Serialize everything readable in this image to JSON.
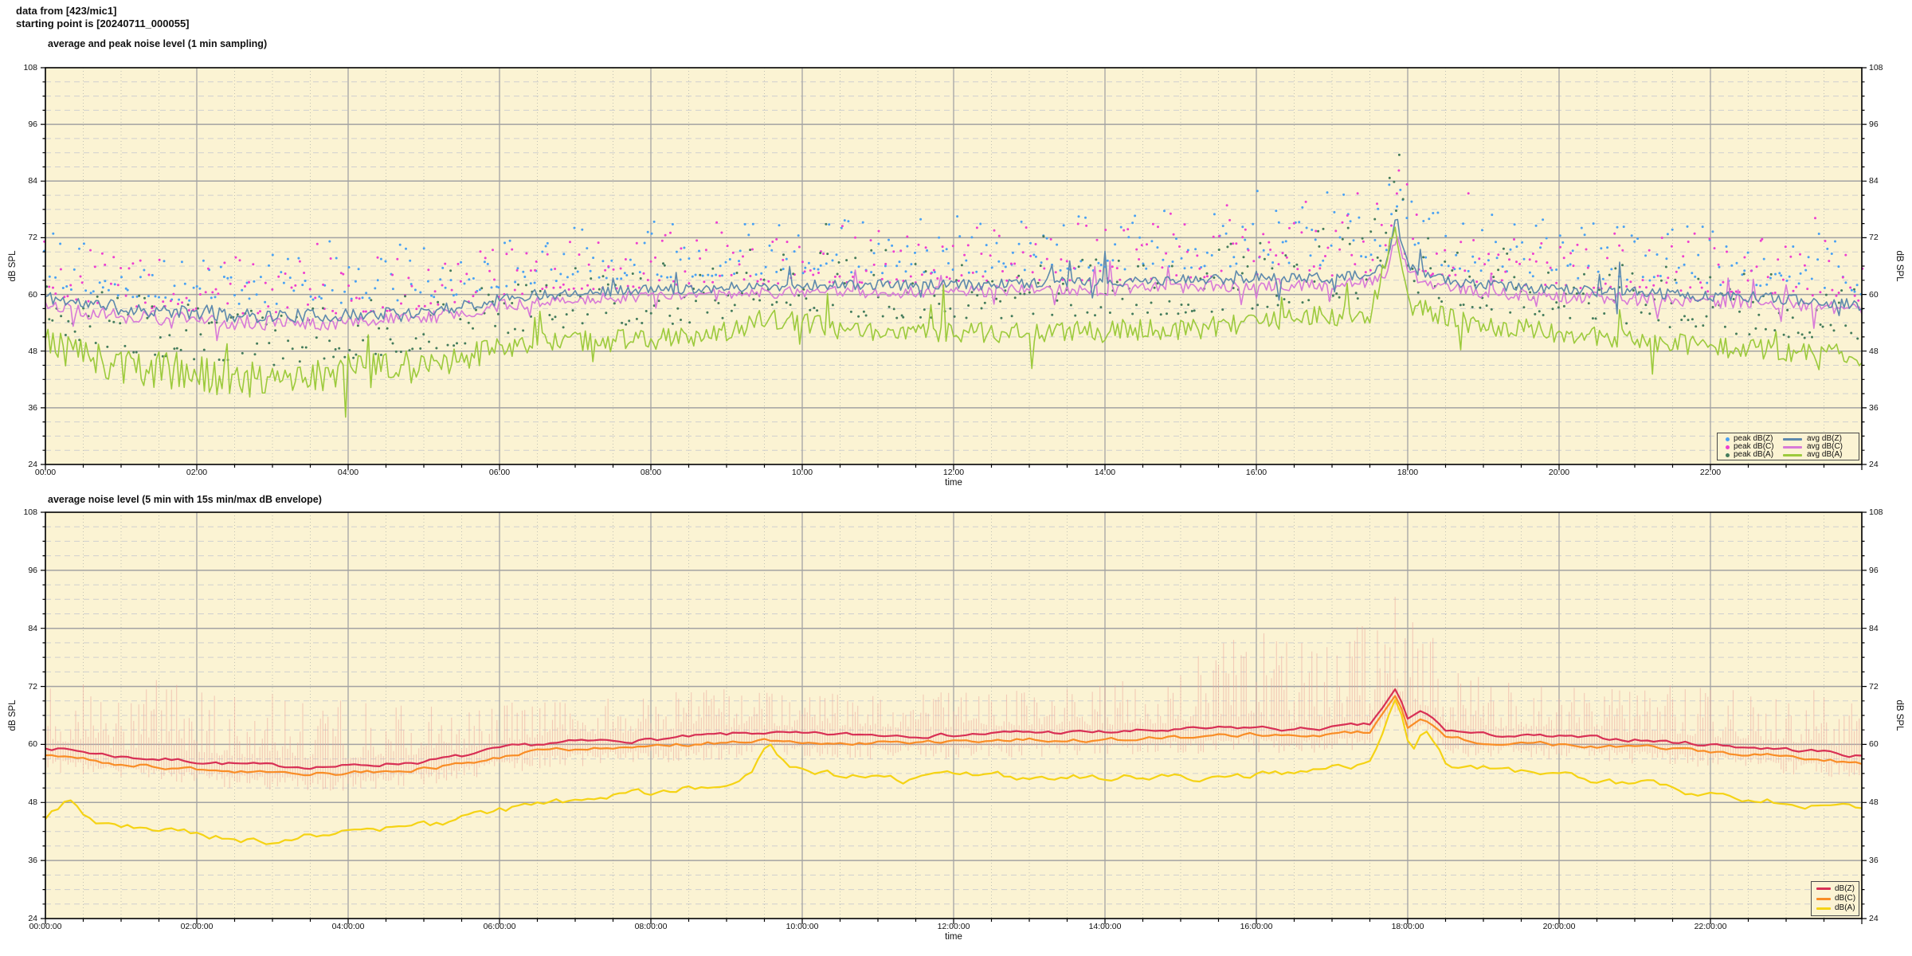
{
  "header": {
    "line1": "data from [423/mic1]",
    "line2": "starting point is [20240711_000055]"
  },
  "colors": {
    "page_bg": "#ffffff",
    "plot_bg": "#fbf3d3",
    "grid_major": "#a3a3a3",
    "grid_minor_dash": "#cfcfcf",
    "grid_minor_dot": "#c2c2b4",
    "axis": "#000000",
    "envelope": "#eda79c"
  },
  "chart_data": [
    {
      "type": "line",
      "title": "average and peak noise level (1 min sampling)",
      "xlabel": "time",
      "ylabel": "dB SPL",
      "y2label": "dB SPL",
      "ylim": [
        24,
        108
      ],
      "ytick_step": 12,
      "ytick_minor_step": 3,
      "ytick_labels": [
        "24",
        "36",
        "48",
        "60",
        "72",
        "84",
        "96",
        "108"
      ],
      "xlim_hours": [
        0,
        24
      ],
      "xtick_step_hours": 2,
      "xtick_minor_hours": 0.5,
      "xtick_labels": [
        "00:00",
        "02:00",
        "04:00",
        "06:00",
        "08:00",
        "10:00",
        "12:00",
        "14:00",
        "16:00",
        "18:00",
        "20:00",
        "22:00"
      ],
      "grid": true,
      "legend": {
        "position": "bottom-right",
        "scatter": [
          {
            "label": "peak dB(Z)",
            "color": "#49a1f3"
          },
          {
            "label": "peak dB(C)",
            "color": "#ee3fd0"
          },
          {
            "label": "peak dB(A)",
            "color": "#447c5c"
          }
        ],
        "lines": [
          {
            "label": "avg dB(Z)",
            "color": "#5d89ad"
          },
          {
            "label": "avg dB(C)",
            "color": "#d87ad8"
          },
          {
            "label": "avg dB(A)",
            "color": "#9cca3c"
          }
        ]
      },
      "sample_min": 2,
      "scatter_sample_min": 3,
      "series": [
        {
          "name": "avg dB(Z)",
          "color": "#5d89ad",
          "width": 1.6,
          "seed": 11,
          "anchors_h": [
            0,
            0.5,
            1,
            1.5,
            2,
            2.5,
            3,
            3.5,
            4,
            4.5,
            5,
            5.5,
            6,
            6.5,
            7,
            8,
            9,
            10,
            11,
            12,
            13,
            14,
            15,
            16,
            17,
            17.4,
            17.7,
            17.85,
            18,
            18.3,
            19,
            20,
            21,
            22,
            22.5,
            23,
            23.5,
            24
          ],
          "anchors_db": [
            59.5,
            58,
            57,
            56.5,
            56,
            55.5,
            55.5,
            55.5,
            55.5,
            56,
            56.5,
            57.5,
            59,
            60,
            60.5,
            61,
            61.5,
            62,
            62,
            62,
            62.5,
            62.5,
            63,
            63.5,
            63.5,
            64,
            65.5,
            76,
            66,
            63.5,
            62,
            61,
            60.5,
            59.5,
            59.5,
            59,
            58.5,
            57.5
          ],
          "jitter_h": [
            0,
            5,
            7,
            24
          ],
          "jitter_db": [
            1.5,
            1.4,
            1.1,
            1.2
          ],
          "spike_p": 0.05,
          "spike_amp": 6,
          "spike_mix": 0.25
        },
        {
          "name": "avg dB(C)",
          "color": "#d87ad8",
          "width": 1.6,
          "seed": 22,
          "anchors_h": [
            0,
            0.5,
            1,
            1.5,
            2,
            2.5,
            3,
            3.5,
            4,
            4.5,
            5,
            5.5,
            6,
            6.5,
            7,
            8,
            9,
            10,
            11,
            12,
            13,
            14,
            15,
            16,
            17,
            17.4,
            17.7,
            17.85,
            18,
            18.3,
            19,
            20,
            21,
            22,
            22.5,
            23,
            23.5,
            24
          ],
          "anchors_db": [
            58,
            56.5,
            55.5,
            55,
            54.5,
            54,
            54,
            54,
            54,
            54.5,
            55,
            56,
            57.5,
            58.5,
            59,
            59.5,
            60,
            60.5,
            60.5,
            60.5,
            61,
            61,
            61.5,
            62,
            62,
            62.5,
            64,
            72.5,
            64.5,
            62,
            60.5,
            59.5,
            59,
            58.5,
            58.5,
            58,
            57.5,
            56.5
          ],
          "jitter_h": [
            0,
            5,
            7,
            24
          ],
          "jitter_db": [
            1.6,
            1.5,
            1.2,
            1.4
          ],
          "spike_p": 0.06,
          "spike_amp": 6.5,
          "spike_mix": 0.5
        },
        {
          "name": "avg dB(A)",
          "color": "#9cca3c",
          "width": 1.6,
          "seed": 33,
          "anchors_h": [
            0,
            0.5,
            1,
            1.5,
            2,
            2.5,
            3,
            3.5,
            4,
            4.5,
            5,
            5.5,
            6,
            6.5,
            7,
            7.5,
            8,
            8.5,
            9,
            9.5,
            10,
            10.5,
            11,
            12,
            13,
            14,
            15,
            16,
            16.5,
            17,
            17.5,
            17.85,
            18,
            18.5,
            19,
            20,
            21,
            22,
            23,
            23.5,
            24
          ],
          "anchors_db": [
            50,
            47,
            45,
            44,
            43,
            42.5,
            42,
            43,
            43.5,
            44,
            45,
            46.5,
            48,
            49.5,
            50,
            50.5,
            50.5,
            51,
            52,
            55,
            54,
            52.5,
            52,
            52,
            52,
            52.5,
            52.5,
            54,
            55,
            55.5,
            56,
            74,
            58,
            55,
            53.5,
            52,
            50.5,
            49,
            48,
            47.5,
            47
          ],
          "jitter_h": [
            0,
            4,
            5.5,
            7,
            24
          ],
          "jitter_db": [
            4.2,
            4.2,
            3,
            2.2,
            2.2
          ],
          "spike_p": 0.06,
          "spike_amp": 9,
          "spike_mix": 0.5
        }
      ],
      "scatter_series": [
        {
          "name": "peak dB(Z)",
          "color": "#49a1f3",
          "base": 0,
          "seed": 101,
          "offset": 2.5,
          "spread": 12,
          "exp": 1.9,
          "outlier_p": 0.012,
          "outlier_add": 8,
          "boost_h": [
            0,
            14,
            15,
            16,
            17,
            18,
            18.5,
            19,
            24
          ],
          "boost_db": [
            0,
            0,
            2,
            4,
            5,
            5,
            3,
            1,
            0
          ]
        },
        {
          "name": "peak dB(C)",
          "color": "#ee3fd0",
          "base": 1,
          "seed": 202,
          "offset": 2,
          "spread": 12,
          "exp": 1.9,
          "outlier_p": 0.012,
          "outlier_add": 8,
          "boost_h": [
            0,
            14,
            15,
            16,
            17,
            18,
            18.5,
            19,
            24
          ],
          "boost_db": [
            0,
            0,
            2,
            4,
            5,
            5,
            3,
            1,
            0
          ]
        },
        {
          "name": "peak dB(A)",
          "color": "#447c5c",
          "base": 2,
          "seed": 303,
          "offset": 3,
          "spread": 13,
          "exp": 1.8,
          "outlier_p": 0.01,
          "outlier_add": 7,
          "boost_h": [
            0,
            14,
            15,
            16,
            17,
            18,
            18.5,
            19,
            24
          ],
          "boost_db": [
            0,
            0,
            1,
            3,
            4,
            4,
            2,
            1,
            0
          ]
        }
      ]
    },
    {
      "type": "line",
      "title": "average noise level (5 min with 15s min/max dB envelope)",
      "xlabel": "time",
      "ylabel": "dB SPL",
      "y2label": "dB SPL",
      "ylim": [
        24,
        108
      ],
      "ytick_step": 12,
      "ytick_minor_step": 3,
      "ytick_labels": [
        "24",
        "36",
        "48",
        "60",
        "72",
        "84",
        "96",
        "108"
      ],
      "xlim_hours": [
        0,
        24
      ],
      "xtick_step_hours": 2,
      "xtick_minor_hours": 0.5,
      "xtick_labels": [
        "00:00:00",
        "02:00:00",
        "04:00:00",
        "06:00:00",
        "08:00:00",
        "10:00:00",
        "12:00:00",
        "14:00:00",
        "16:00:00",
        "18:00:00",
        "20:00:00",
        "22:00:00"
      ],
      "grid": true,
      "legend": {
        "position": "bottom-right",
        "lines": [
          {
            "label": "dB(Z)",
            "color": "#d83055"
          },
          {
            "label": "dB(C)",
            "color": "#f98d26"
          },
          {
            "label": "dB(A)",
            "color": "#f5d314"
          }
        ]
      },
      "sample_min": 5,
      "envelope": {
        "color": "#eda79c",
        "sample_min": 2,
        "seed": 77,
        "high_base_offset": 1.5,
        "high_exp": 2.2,
        "full_amp_p": 0.04,
        "low_offset": 0.8,
        "low_spread": 2.8,
        "amp_anchors_h": [
          0,
          1,
          2,
          3,
          4,
          5,
          6,
          7,
          8,
          9,
          10,
          11,
          12,
          13,
          14,
          15,
          15.5,
          16,
          17,
          17.5,
          18,
          18.5,
          19,
          20,
          21,
          21.5,
          22,
          23,
          24
        ],
        "amp_anchors_db": [
          14,
          15,
          15,
          14,
          12,
          10,
          8,
          7,
          8,
          8,
          7,
          7,
          8,
          8,
          9,
          12,
          16,
          18,
          19,
          20,
          20,
          14,
          10,
          9,
          9,
          12,
          10,
          11,
          12
        ]
      },
      "series": [
        {
          "name": "dB(Z)",
          "color": "#d83055",
          "width": 2.2,
          "seed": 7,
          "smooth": true,
          "noise_w": 0.9,
          "anchors_h": [
            0,
            0.5,
            1,
            1.5,
            2,
            2.5,
            3,
            3.5,
            4,
            4.5,
            5,
            5.5,
            6,
            6.5,
            7,
            8,
            9,
            9.5,
            10,
            11,
            12,
            13,
            14,
            15,
            16,
            16.5,
            17,
            17.5,
            17.85,
            18,
            18.2,
            18.5,
            19,
            20,
            21,
            22,
            22.5,
            23,
            23.5,
            24
          ],
          "anchors_db": [
            59.5,
            58.5,
            57.5,
            57,
            56.5,
            56,
            55.5,
            55.5,
            55.5,
            56,
            56.5,
            57.5,
            59,
            60,
            60.5,
            61,
            62,
            62.5,
            62,
            62,
            62,
            62.5,
            62.5,
            63,
            63.5,
            63,
            63.5,
            64,
            71.5,
            65,
            67,
            63,
            62,
            61.5,
            61,
            60,
            59.5,
            59,
            58.5,
            57.5
          ]
        },
        {
          "name": "dB(C)",
          "color": "#f98d26",
          "width": 2.2,
          "seed": 8,
          "smooth": true,
          "noise_w": 0.9,
          "anchors_h": [
            0,
            0.5,
            1,
            1.5,
            2,
            2.5,
            3,
            3.5,
            4,
            4.5,
            5,
            5.5,
            6,
            6.5,
            7,
            8,
            9,
            9.5,
            10,
            11,
            12,
            13,
            14,
            15,
            16,
            16.5,
            17,
            17.5,
            17.85,
            18,
            18.2,
            18.5,
            19,
            20,
            21,
            22,
            22.5,
            23,
            23.5,
            24
          ],
          "anchors_db": [
            58,
            57,
            56,
            55.5,
            55,
            54.5,
            54,
            54,
            54,
            54.5,
            55,
            56,
            57.5,
            58.5,
            59,
            59.5,
            60.5,
            61,
            60.5,
            60.5,
            60.5,
            61,
            61,
            61.5,
            62,
            61.5,
            62,
            62.5,
            70,
            63.5,
            65.5,
            61.5,
            60.5,
            60,
            59.5,
            58.5,
            58,
            57.5,
            57,
            56
          ]
        },
        {
          "name": "dB(A)",
          "color": "#f5d314",
          "width": 2.2,
          "seed": 9,
          "smooth": true,
          "noise_w": 1.7,
          "anchors_h": [
            0,
            0.3,
            0.6,
            1,
            1.5,
            2,
            2.5,
            3,
            3.5,
            4,
            4.5,
            5,
            5.5,
            6,
            6.5,
            7,
            7.5,
            8,
            8.5,
            9,
            9.3,
            9.55,
            9.8,
            10,
            10.5,
            11,
            11.5,
            12,
            12.5,
            13,
            14,
            15,
            16,
            16.5,
            17,
            17.5,
            17.85,
            18.05,
            18.2,
            18.5,
            19,
            19.5,
            20,
            21,
            22,
            22.5,
            23,
            23.5,
            24
          ],
          "anchors_db": [
            45,
            48.5,
            44,
            43,
            42,
            41.5,
            40.5,
            40,
            41,
            42,
            42.5,
            43,
            44.5,
            46,
            47.5,
            48.5,
            49.5,
            50,
            51,
            52.5,
            54,
            60,
            55,
            54,
            53.5,
            53,
            52.5,
            53.5,
            54,
            53,
            53.5,
            53,
            53.5,
            54.5,
            55,
            55.5,
            70.5,
            57,
            63.5,
            56,
            55,
            54.5,
            53.5,
            52,
            49.5,
            48.5,
            48,
            47.5,
            47
          ]
        }
      ]
    }
  ]
}
